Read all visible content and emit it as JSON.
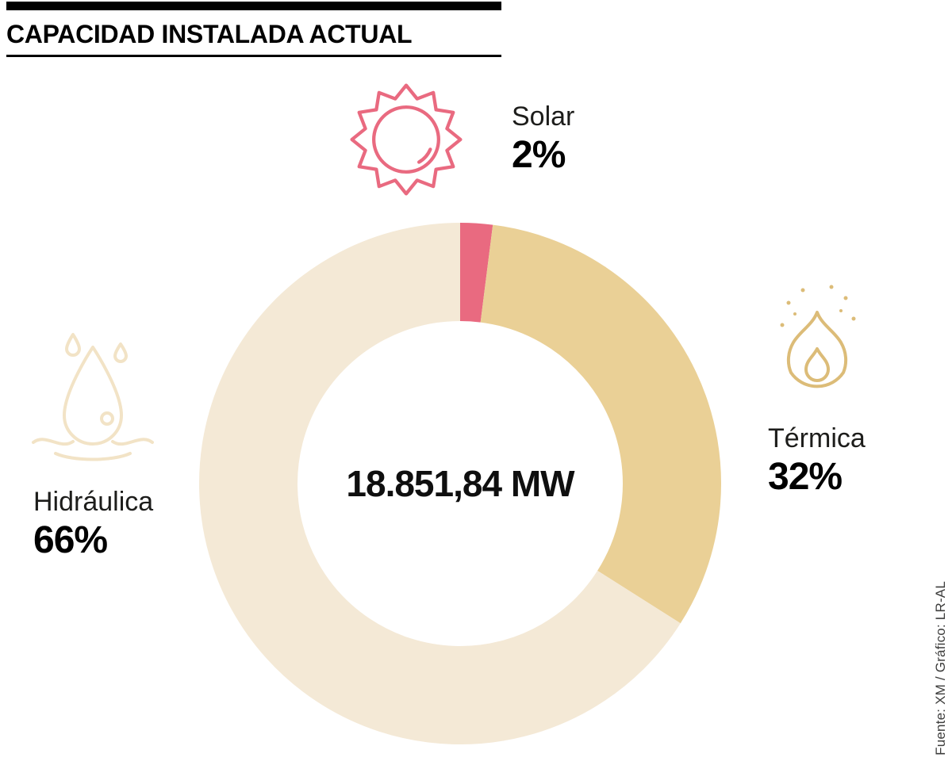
{
  "header": {
    "title": "CAPACIDAD INSTALADA ACTUAL"
  },
  "chart_data": {
    "type": "pie",
    "donut": true,
    "title": "CAPACIDAD INSTALADA ACTUAL",
    "categories": [
      "Solar",
      "Térmica",
      "Hidráulica"
    ],
    "values": [
      2,
      32,
      66
    ],
    "unit": "%",
    "colors": [
      "#e96a80",
      "#ead096",
      "#f4e9d6"
    ],
    "start_angle_deg": 0,
    "direction": "clockwise",
    "center_label": "18.851,84 MW",
    "legend_position": "around-donut"
  },
  "legend": {
    "solar": {
      "label": "Solar",
      "value": "2%"
    },
    "termica": {
      "label": "Térmica",
      "value": "32%"
    },
    "hidraulica": {
      "label": "Hidráulica",
      "value": "66%"
    }
  },
  "icons": {
    "solar": "sun-icon",
    "termica": "flame-icon",
    "hidraulica": "water-drop-icon"
  },
  "palette": {
    "solar_accent": "#e96a80",
    "termica_accent": "#dcbc78",
    "hidraulica_accent": "#f2e3c6",
    "text": "#000000",
    "source_text": "#3d3d3c"
  },
  "source": "Fuente: XM / Gráfico: LR-AL"
}
